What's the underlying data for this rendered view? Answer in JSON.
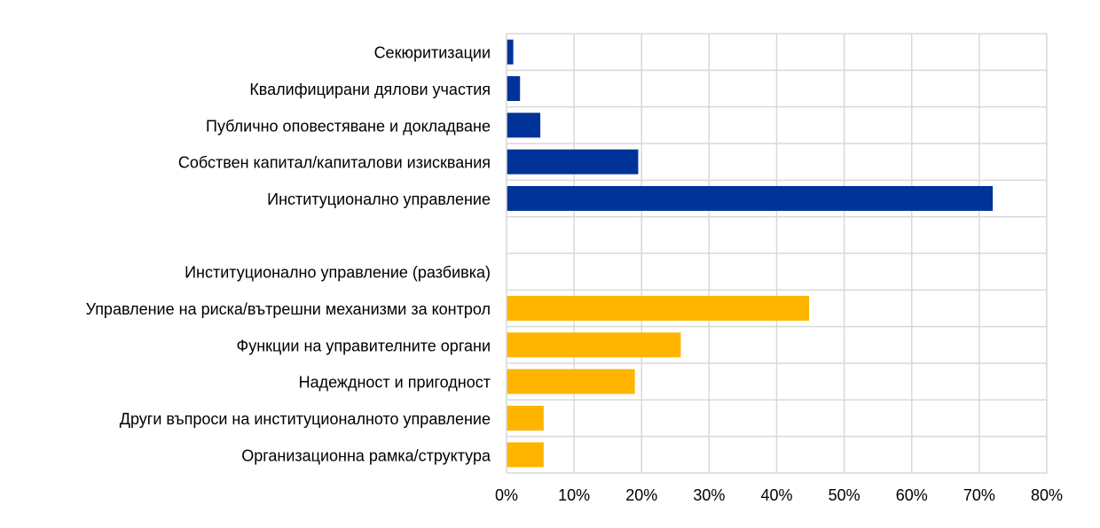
{
  "chart_data": {
    "type": "bar",
    "orientation": "horizontal",
    "title": "",
    "xlabel": "",
    "ylabel": "",
    "xlim": [
      0,
      80
    ],
    "x_ticks": [
      "0%",
      "10%",
      "20%",
      "30%",
      "40%",
      "50%",
      "60%",
      "70%",
      "80%"
    ],
    "grid": true,
    "legend": "none",
    "colors": {
      "blue": "#003399",
      "orange": "#FFB400",
      "grid": "#D9D9D9"
    },
    "categories": [
      "Секюритизации",
      "Квалифицирани дялови участия",
      "Публично оповестяване и докладване",
      "Собствен капитал/капиталови изисквания",
      "Институционално управление",
      "",
      "Институционално управление (разбивка)",
      "Управление на риска/вътрешни механизми за контрол",
      "Функции на управителните органи",
      "Надеждност и пригодност",
      "Други въпроси на институционалното управление",
      "Организационна рамка/структура"
    ],
    "values": [
      1,
      2,
      5,
      19.5,
      72,
      null,
      null,
      44.8,
      25.8,
      19,
      5.5,
      5.5
    ],
    "bar_colors": [
      "blue",
      "blue",
      "blue",
      "blue",
      "blue",
      null,
      null,
      "orange",
      "orange",
      "orange",
      "orange",
      "orange"
    ]
  }
}
